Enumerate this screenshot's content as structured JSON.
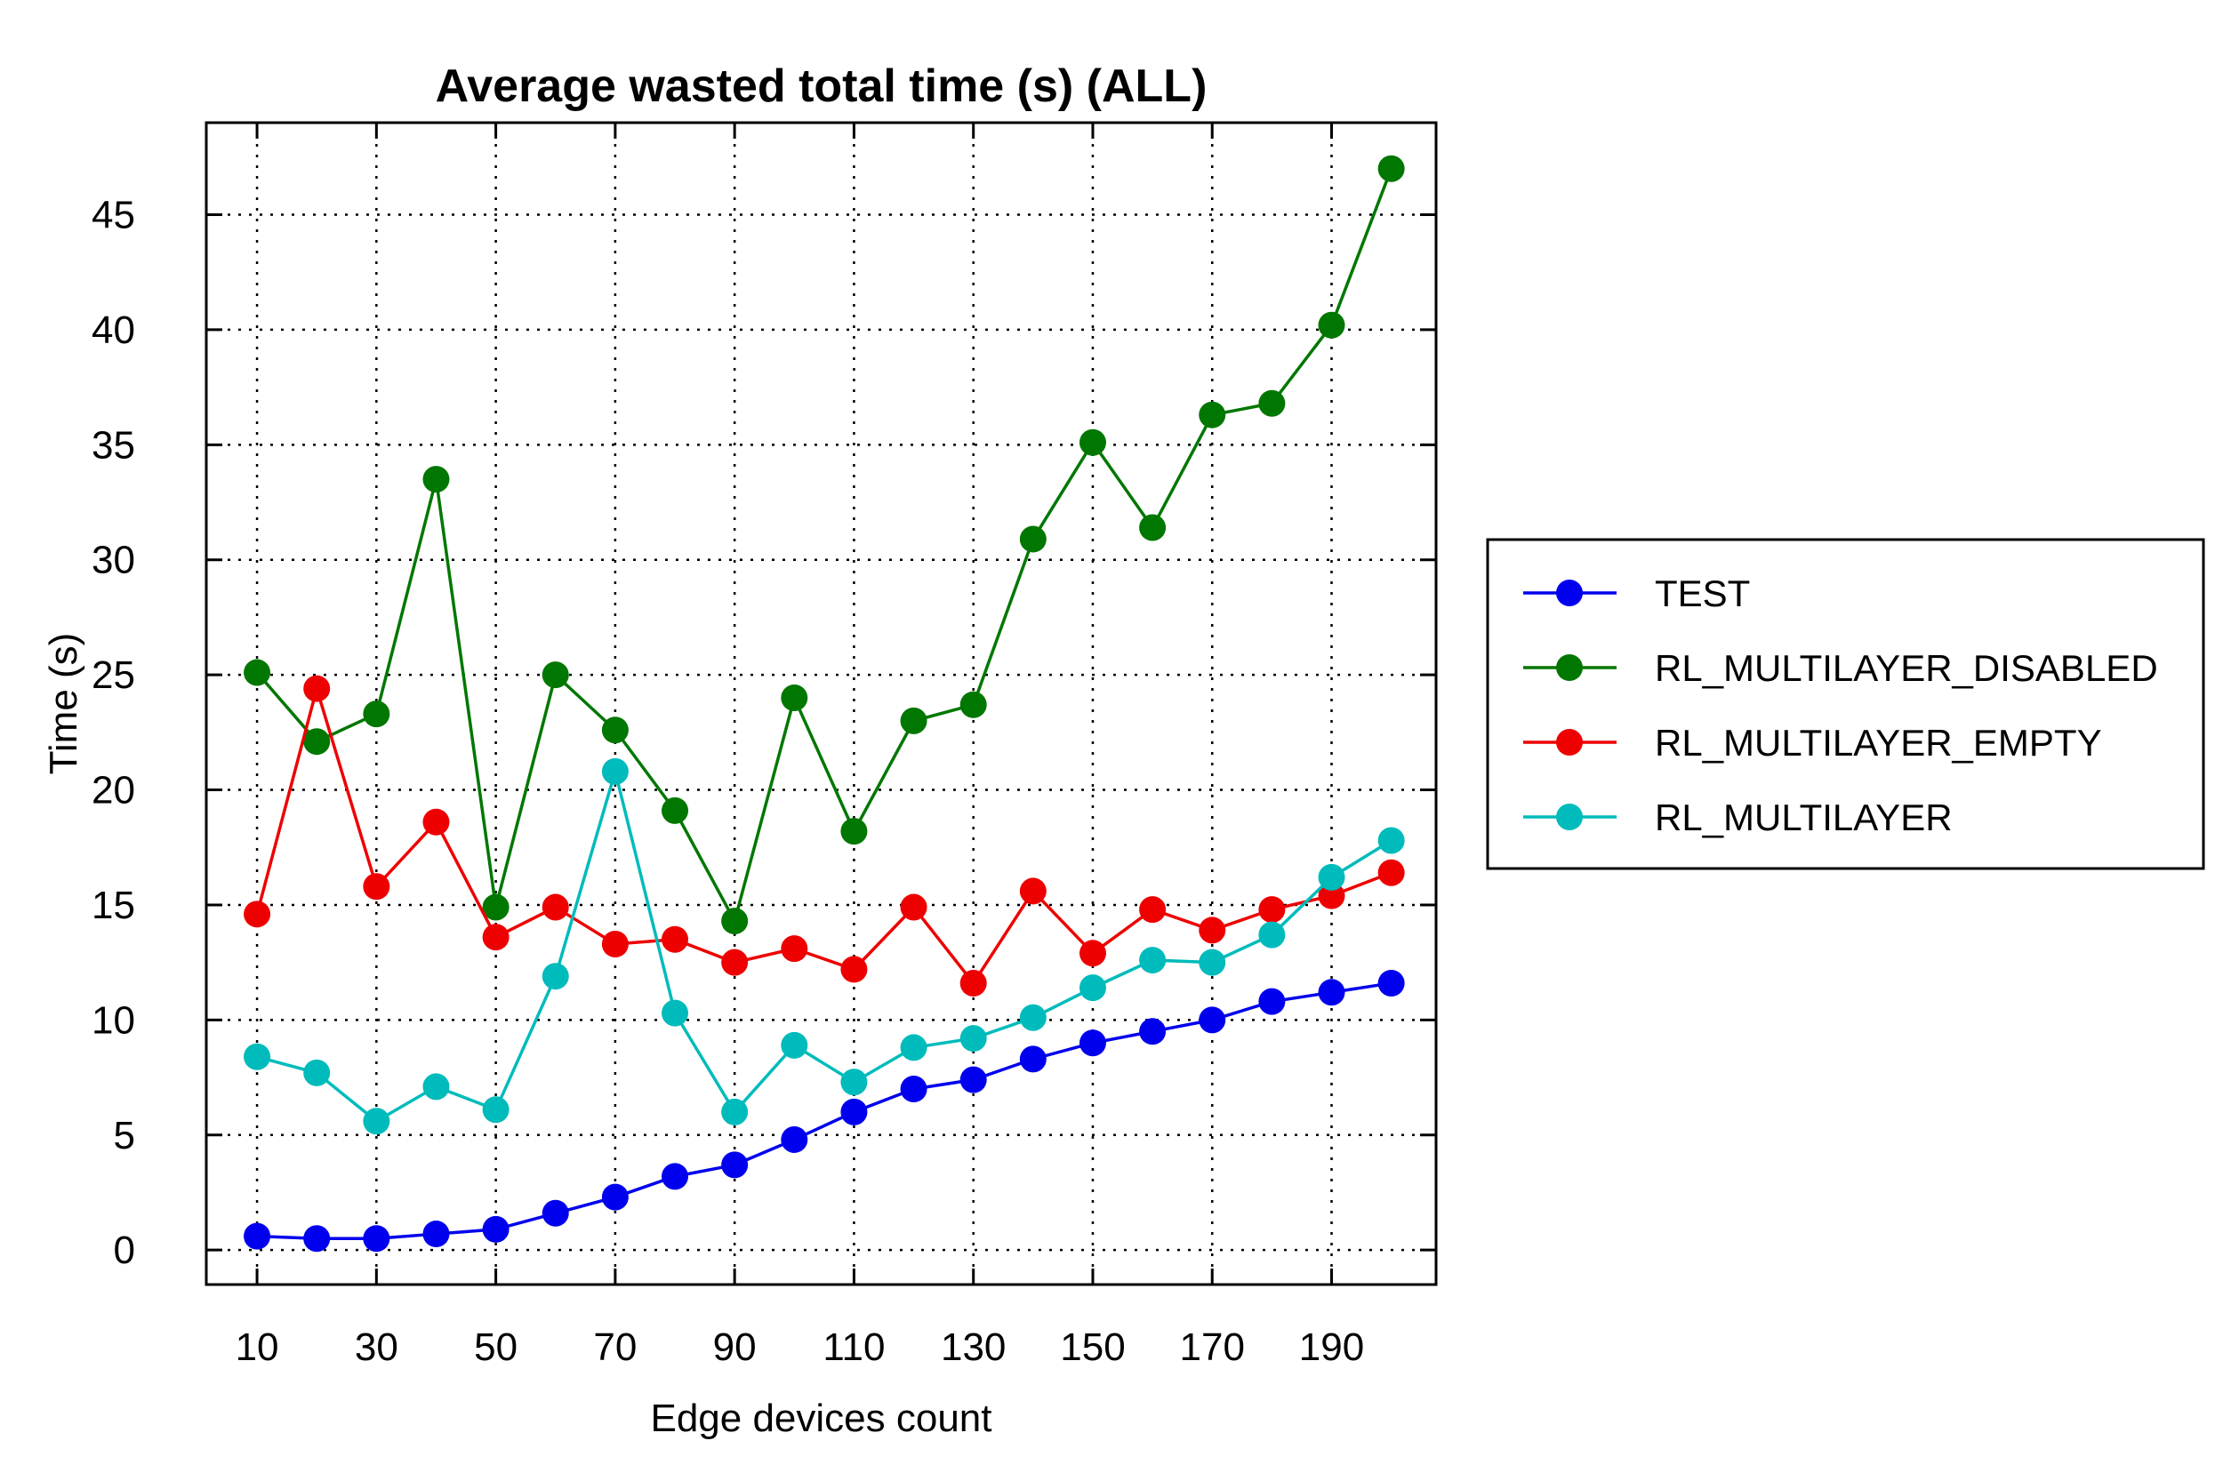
{
  "chart_data": {
    "type": "line",
    "title": "Average wasted total time (s) (ALL)",
    "xlabel": "Edge devices count",
    "ylabel": "Time (s)",
    "xlim": [
      1.5,
      207.5
    ],
    "ylim": [
      -1.5,
      49
    ],
    "xticks": [
      10,
      30,
      50,
      70,
      90,
      110,
      130,
      150,
      170,
      190
    ],
    "yticks": [
      0,
      5,
      10,
      15,
      20,
      25,
      30,
      35,
      40,
      45
    ],
    "grid": true,
    "legend_position": "right",
    "x": [
      10,
      20,
      30,
      40,
      50,
      60,
      70,
      80,
      90,
      100,
      110,
      120,
      130,
      140,
      150,
      160,
      170,
      180,
      190,
      200
    ],
    "series": [
      {
        "name": "TEST",
        "color": "#0000ee",
        "values": [
          0.6,
          0.5,
          0.5,
          0.7,
          0.9,
          1.6,
          2.3,
          3.2,
          3.7,
          4.8,
          6.0,
          7.0,
          7.4,
          8.3,
          9.0,
          9.5,
          10.0,
          10.8,
          11.2,
          11.6
        ]
      },
      {
        "name": "RL_MULTILAYER_DISABLED",
        "color": "#007700",
        "values": [
          25.1,
          22.1,
          23.3,
          33.5,
          14.9,
          25.0,
          22.6,
          19.1,
          14.3,
          24.0,
          18.2,
          23.0,
          23.7,
          30.9,
          35.1,
          31.4,
          36.3,
          36.8,
          40.2,
          47.0
        ]
      },
      {
        "name": "RL_MULTILAYER_EMPTY",
        "color": "#ee0000",
        "values": [
          14.6,
          24.4,
          15.8,
          18.6,
          13.6,
          14.9,
          13.3,
          13.5,
          12.5,
          13.1,
          12.2,
          14.9,
          11.6,
          15.6,
          12.9,
          14.8,
          13.9,
          14.8,
          15.4,
          16.4
        ]
      },
      {
        "name": "RL_MULTILAYER",
        "color": "#00bbbb",
        "values": [
          8.4,
          7.7,
          5.6,
          7.1,
          6.1,
          11.9,
          20.8,
          10.3,
          6.0,
          8.9,
          7.3,
          8.8,
          9.2,
          10.1,
          11.4,
          12.6,
          12.5,
          13.7,
          16.2,
          17.8
        ]
      }
    ]
  }
}
